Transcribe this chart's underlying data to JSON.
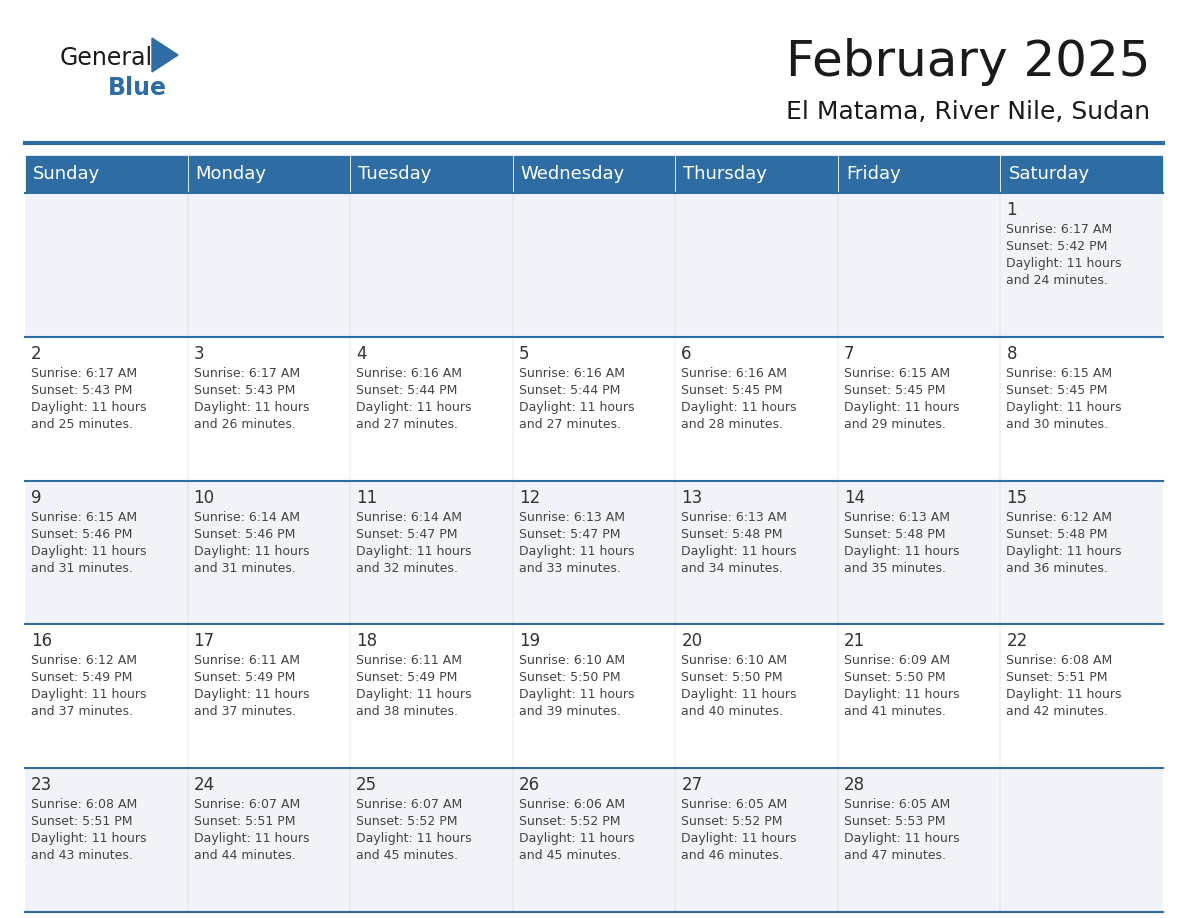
{
  "title": "February 2025",
  "subtitle": "El Matama, River Nile, Sudan",
  "header_color": "#2E6DA4",
  "header_text_color": "#FFFFFF",
  "border_color": "#2E6DA4",
  "day_names": [
    "Sunday",
    "Monday",
    "Tuesday",
    "Wednesday",
    "Thursday",
    "Friday",
    "Saturday"
  ],
  "title_fontsize": 36,
  "subtitle_fontsize": 18,
  "header_fontsize": 13,
  "day_num_fontsize": 12,
  "cell_fontsize": 9,
  "logo_general_color": "#1a1a1a",
  "logo_blue_color": "#2E6DA4",
  "cell_bg_even": "#FFFFFF",
  "cell_bg_odd": "#F0F4F8",
  "calendar": [
    [
      null,
      null,
      null,
      null,
      null,
      null,
      {
        "day": 1,
        "sunrise": "6:17 AM",
        "sunset": "5:42 PM",
        "daylight_h": "11 hours",
        "daylight_m": "and 24 minutes."
      }
    ],
    [
      {
        "day": 2,
        "sunrise": "6:17 AM",
        "sunset": "5:43 PM",
        "daylight_h": "11 hours",
        "daylight_m": "and 25 minutes."
      },
      {
        "day": 3,
        "sunrise": "6:17 AM",
        "sunset": "5:43 PM",
        "daylight_h": "11 hours",
        "daylight_m": "and 26 minutes."
      },
      {
        "day": 4,
        "sunrise": "6:16 AM",
        "sunset": "5:44 PM",
        "daylight_h": "11 hours",
        "daylight_m": "and 27 minutes."
      },
      {
        "day": 5,
        "sunrise": "6:16 AM",
        "sunset": "5:44 PM",
        "daylight_h": "11 hours",
        "daylight_m": "and 27 minutes."
      },
      {
        "day": 6,
        "sunrise": "6:16 AM",
        "sunset": "5:45 PM",
        "daylight_h": "11 hours",
        "daylight_m": "and 28 minutes."
      },
      {
        "day": 7,
        "sunrise": "6:15 AM",
        "sunset": "5:45 PM",
        "daylight_h": "11 hours",
        "daylight_m": "and 29 minutes."
      },
      {
        "day": 8,
        "sunrise": "6:15 AM",
        "sunset": "5:45 PM",
        "daylight_h": "11 hours",
        "daylight_m": "and 30 minutes."
      }
    ],
    [
      {
        "day": 9,
        "sunrise": "6:15 AM",
        "sunset": "5:46 PM",
        "daylight_h": "11 hours",
        "daylight_m": "and 31 minutes."
      },
      {
        "day": 10,
        "sunrise": "6:14 AM",
        "sunset": "5:46 PM",
        "daylight_h": "11 hours",
        "daylight_m": "and 31 minutes."
      },
      {
        "day": 11,
        "sunrise": "6:14 AM",
        "sunset": "5:47 PM",
        "daylight_h": "11 hours",
        "daylight_m": "and 32 minutes."
      },
      {
        "day": 12,
        "sunrise": "6:13 AM",
        "sunset": "5:47 PM",
        "daylight_h": "11 hours",
        "daylight_m": "and 33 minutes."
      },
      {
        "day": 13,
        "sunrise": "6:13 AM",
        "sunset": "5:48 PM",
        "daylight_h": "11 hours",
        "daylight_m": "and 34 minutes."
      },
      {
        "day": 14,
        "sunrise": "6:13 AM",
        "sunset": "5:48 PM",
        "daylight_h": "11 hours",
        "daylight_m": "and 35 minutes."
      },
      {
        "day": 15,
        "sunrise": "6:12 AM",
        "sunset": "5:48 PM",
        "daylight_h": "11 hours",
        "daylight_m": "and 36 minutes."
      }
    ],
    [
      {
        "day": 16,
        "sunrise": "6:12 AM",
        "sunset": "5:49 PM",
        "daylight_h": "11 hours",
        "daylight_m": "and 37 minutes."
      },
      {
        "day": 17,
        "sunrise": "6:11 AM",
        "sunset": "5:49 PM",
        "daylight_h": "11 hours",
        "daylight_m": "and 37 minutes."
      },
      {
        "day": 18,
        "sunrise": "6:11 AM",
        "sunset": "5:49 PM",
        "daylight_h": "11 hours",
        "daylight_m": "and 38 minutes."
      },
      {
        "day": 19,
        "sunrise": "6:10 AM",
        "sunset": "5:50 PM",
        "daylight_h": "11 hours",
        "daylight_m": "and 39 minutes."
      },
      {
        "day": 20,
        "sunrise": "6:10 AM",
        "sunset": "5:50 PM",
        "daylight_h": "11 hours",
        "daylight_m": "and 40 minutes."
      },
      {
        "day": 21,
        "sunrise": "6:09 AM",
        "sunset": "5:50 PM",
        "daylight_h": "11 hours",
        "daylight_m": "and 41 minutes."
      },
      {
        "day": 22,
        "sunrise": "6:08 AM",
        "sunset": "5:51 PM",
        "daylight_h": "11 hours",
        "daylight_m": "and 42 minutes."
      }
    ],
    [
      {
        "day": 23,
        "sunrise": "6:08 AM",
        "sunset": "5:51 PM",
        "daylight_h": "11 hours",
        "daylight_m": "and 43 minutes."
      },
      {
        "day": 24,
        "sunrise": "6:07 AM",
        "sunset": "5:51 PM",
        "daylight_h": "11 hours",
        "daylight_m": "and 44 minutes."
      },
      {
        "day": 25,
        "sunrise": "6:07 AM",
        "sunset": "5:52 PM",
        "daylight_h": "11 hours",
        "daylight_m": "and 45 minutes."
      },
      {
        "day": 26,
        "sunrise": "6:06 AM",
        "sunset": "5:52 PM",
        "daylight_h": "11 hours",
        "daylight_m": "and 45 minutes."
      },
      {
        "day": 27,
        "sunrise": "6:05 AM",
        "sunset": "5:52 PM",
        "daylight_h": "11 hours",
        "daylight_m": "and 46 minutes."
      },
      {
        "day": 28,
        "sunrise": "6:05 AM",
        "sunset": "5:53 PM",
        "daylight_h": "11 hours",
        "daylight_m": "and 47 minutes."
      },
      null
    ]
  ]
}
